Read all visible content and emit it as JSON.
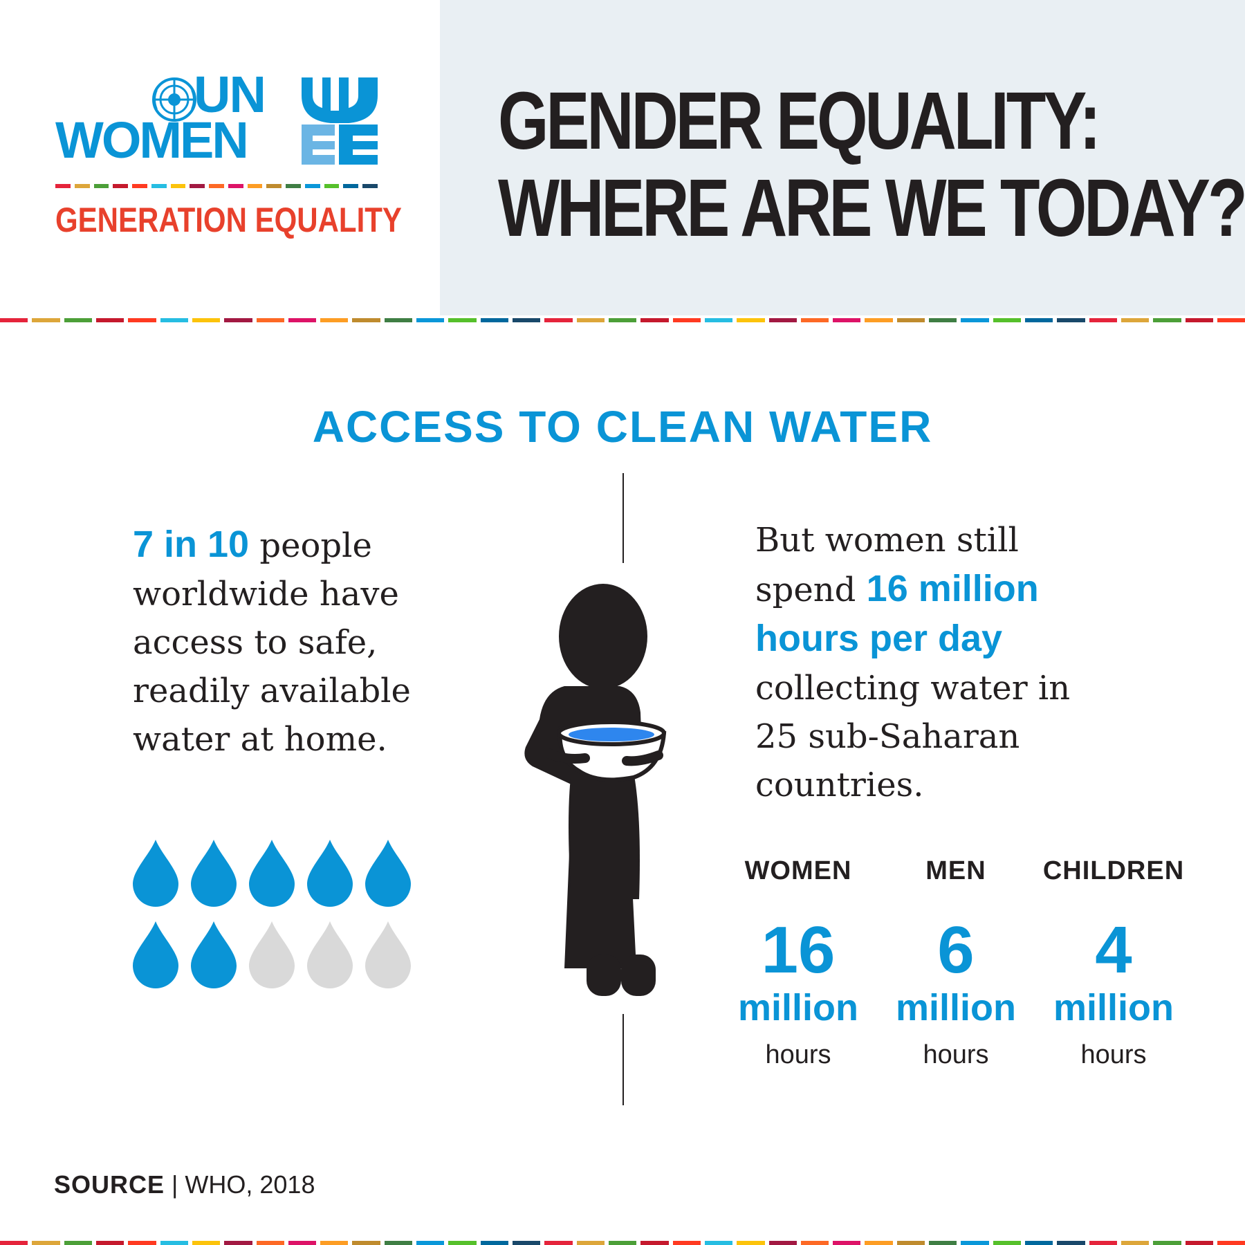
{
  "logo": {
    "un": "UN",
    "women": "WOMEN",
    "tagline": "GENERATION EQUALITY"
  },
  "header": {
    "title_line1": "GENDER EQUALITY:",
    "title_line2": "WHERE ARE WE TODAY?"
  },
  "section": {
    "title": "ACCESS TO CLEAN WATER"
  },
  "left": {
    "highlight": "7 in 10",
    "text_1": " people",
    "text_2": "worldwide have",
    "text_3": "access to safe,",
    "text_4": "readily available",
    "text_5": "water at home."
  },
  "drops": {
    "total": 10,
    "filled": 7,
    "filled_color": "#0a94d6",
    "empty_color": "#d9d9d9"
  },
  "right": {
    "line1": "But women still",
    "line2_pre": "spend ",
    "highlight_1": "16 million",
    "highlight_2": "hours per day",
    "line3": "collecting water in",
    "line4": "25 sub-Saharan",
    "line5": "countries."
  },
  "stats": [
    {
      "label": "WOMEN",
      "value": "16",
      "unit": "million",
      "sub": "hours"
    },
    {
      "label": "MEN",
      "value": "6",
      "unit": "million",
      "sub": "hours"
    },
    {
      "label": "CHILDREN",
      "value": "4",
      "unit": "million",
      "sub": "hours"
    }
  ],
  "source": {
    "label": "SOURCE",
    "separator": " | ",
    "text": "WHO, 2018"
  },
  "colors": {
    "brand_blue": "#0a94d6",
    "tagline_red": "#e8412c",
    "header_bg": "#e9eff3",
    "text_dark": "#231f20",
    "sdg": [
      "#e5243b",
      "#dda63a",
      "#4c9f38",
      "#c5192d",
      "#ff3a21",
      "#26bde2",
      "#fcc30b",
      "#a21942",
      "#fd6925",
      "#dd1367",
      "#fd9d24",
      "#bf8b2e",
      "#3f7e44",
      "#0a97d9",
      "#56c02b",
      "#00689d",
      "#19486a"
    ]
  },
  "icons": {
    "globe": "un-emblem-icon",
    "mark": "un-women-mark-icon",
    "drop": "water-drop-icon",
    "figure": "woman-carrying-water-icon"
  }
}
